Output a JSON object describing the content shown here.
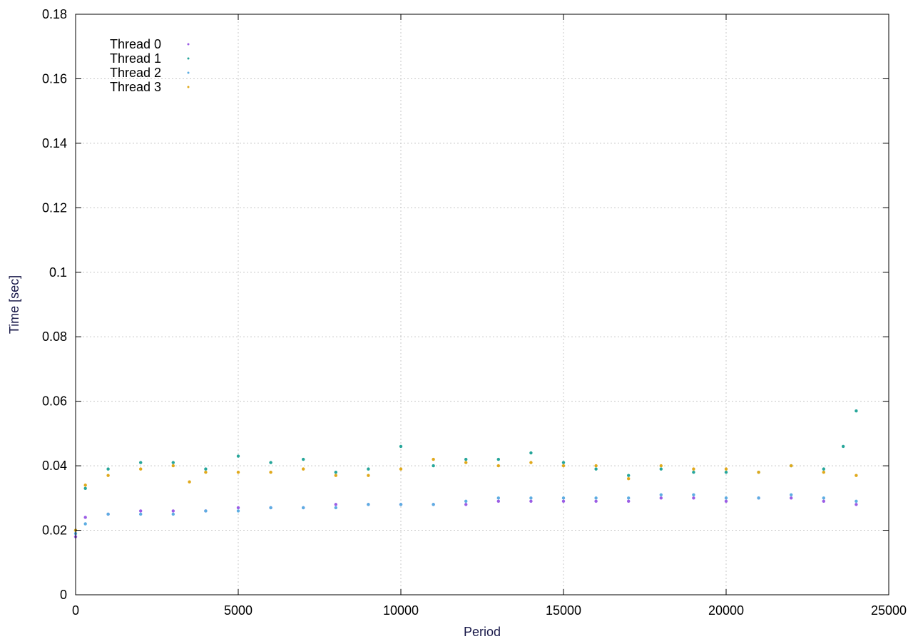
{
  "chart_data": {
    "type": "scatter",
    "title": "",
    "xlabel": "Period",
    "ylabel": "Time [sec]",
    "xlim": [
      0,
      25000
    ],
    "ylim": [
      0,
      0.18
    ],
    "xticks": [
      0,
      5000,
      10000,
      15000,
      20000,
      25000
    ],
    "xtick_labels": [
      "0",
      "5000",
      "10000",
      "15000",
      "20000",
      "25000"
    ],
    "yticks": [
      0,
      0.02,
      0.04,
      0.06,
      0.08,
      0.1,
      0.12,
      0.14,
      0.16,
      0.18
    ],
    "ytick_labels": [
      "0",
      "0.02",
      "0.04",
      "0.06",
      "0.08",
      "0.1",
      "0.12",
      "0.14",
      "0.16",
      "0.18"
    ],
    "grid": true,
    "legend_position": "top-left",
    "series": [
      {
        "name": "Thread 0",
        "color": "#9b5de5",
        "x": [
          0,
          300,
          1000,
          2000,
          3000,
          4000,
          5000,
          6000,
          7000,
          8000,
          9000,
          10000,
          11000,
          12000,
          13000,
          14000,
          15000,
          16000,
          17000,
          18000,
          19000,
          20000,
          21000,
          22000,
          23000,
          24000
        ],
        "y": [
          0.018,
          0.024,
          0.025,
          0.026,
          0.026,
          0.026,
          0.027,
          0.027,
          0.027,
          0.028,
          0.028,
          0.028,
          0.028,
          0.028,
          0.029,
          0.029,
          0.029,
          0.029,
          0.029,
          0.03,
          0.03,
          0.029,
          0.03,
          0.03,
          0.029,
          0.028
        ]
      },
      {
        "name": "Thread 1",
        "color": "#26a69a",
        "x": [
          0,
          300,
          1000,
          2000,
          3000,
          4000,
          5000,
          6000,
          7000,
          8000,
          9000,
          10000,
          11000,
          12000,
          13000,
          14000,
          15000,
          16000,
          17000,
          18000,
          19000,
          20000,
          21000,
          22000,
          23000,
          23600,
          24000
        ],
        "y": [
          0.02,
          0.033,
          0.039,
          0.041,
          0.041,
          0.039,
          0.043,
          0.041,
          0.042,
          0.038,
          0.039,
          0.046,
          0.04,
          0.042,
          0.042,
          0.044,
          0.041,
          0.039,
          0.037,
          0.039,
          0.038,
          0.038,
          0.038,
          0.04,
          0.039,
          0.046,
          0.057
        ]
      },
      {
        "name": "Thread 2",
        "color": "#5dade2",
        "x": [
          0,
          300,
          1000,
          2000,
          3000,
          4000,
          5000,
          6000,
          7000,
          8000,
          9000,
          10000,
          11000,
          12000,
          13000,
          14000,
          15000,
          16000,
          17000,
          18000,
          19000,
          20000,
          21000,
          22000,
          23000,
          24000
        ],
        "y": [
          0.019,
          0.022,
          0.025,
          0.025,
          0.025,
          0.026,
          0.026,
          0.027,
          0.027,
          0.027,
          0.028,
          0.028,
          0.028,
          0.029,
          0.03,
          0.03,
          0.03,
          0.03,
          0.03,
          0.031,
          0.031,
          0.03,
          0.03,
          0.031,
          0.03,
          0.029
        ]
      },
      {
        "name": "Thread 3",
        "color": "#e0a91c",
        "x": [
          0,
          300,
          1000,
          2000,
          3000,
          3500,
          4000,
          5000,
          6000,
          7000,
          8000,
          9000,
          10000,
          11000,
          12000,
          13000,
          14000,
          15000,
          16000,
          17000,
          18000,
          19000,
          20000,
          21000,
          22000,
          23000,
          24000
        ],
        "y": [
          0.02,
          0.034,
          0.037,
          0.039,
          0.04,
          0.035,
          0.038,
          0.038,
          0.038,
          0.039,
          0.037,
          0.037,
          0.039,
          0.042,
          0.041,
          0.04,
          0.041,
          0.04,
          0.04,
          0.036,
          0.04,
          0.039,
          0.039,
          0.038,
          0.04,
          0.038,
          0.037
        ]
      }
    ]
  }
}
